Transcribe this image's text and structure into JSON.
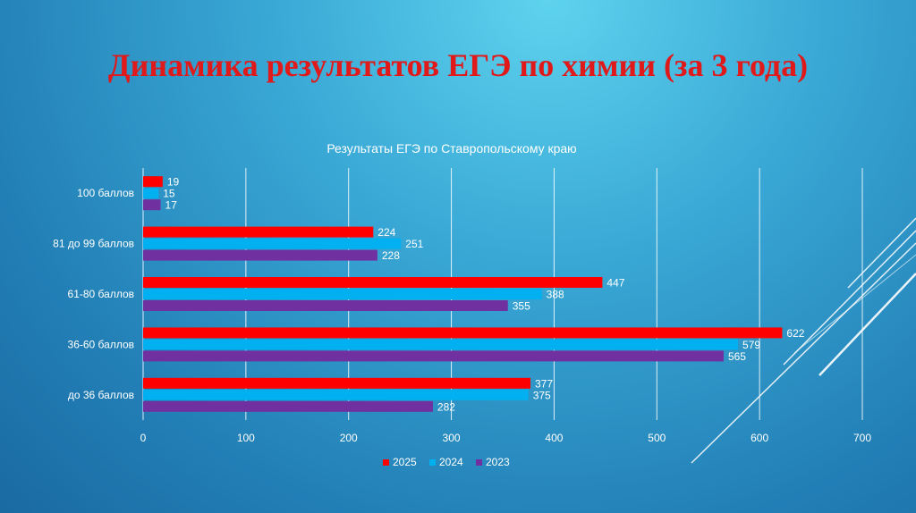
{
  "slide": {
    "title": "Динамика результатов ЕГЭ по химии (за 3 года)"
  },
  "colors": {
    "title": "#e0191b",
    "series_2025": "#ff0000",
    "series_2024": "#00b0f0",
    "series_2023": "#7030a0",
    "text": "#ffffff",
    "grid": "#ffffff"
  },
  "chart_data": {
    "type": "bar",
    "orientation": "horizontal",
    "title": "Результаты ЕГЭ по Ставропольскому краю",
    "categories": [
      "100 баллов",
      "81 до 99 баллов",
      "61-80 баллов",
      "36-60 баллов",
      "до 36 баллов"
    ],
    "series": [
      {
        "name": "2025",
        "color": "#ff0000",
        "values": [
          19,
          224,
          447,
          622,
          377
        ]
      },
      {
        "name": "2024",
        "color": "#00b0f0",
        "values": [
          15,
          251,
          388,
          579,
          375
        ]
      },
      {
        "name": "2023",
        "color": "#7030a0",
        "values": [
          17,
          228,
          355,
          565,
          282
        ]
      }
    ],
    "xlim": [
      0,
      700
    ],
    "xticks": [
      "0",
      "100",
      "200",
      "300",
      "400",
      "500",
      "600",
      "700"
    ],
    "grid": true,
    "legend": "bottom",
    "data_labels": true
  }
}
